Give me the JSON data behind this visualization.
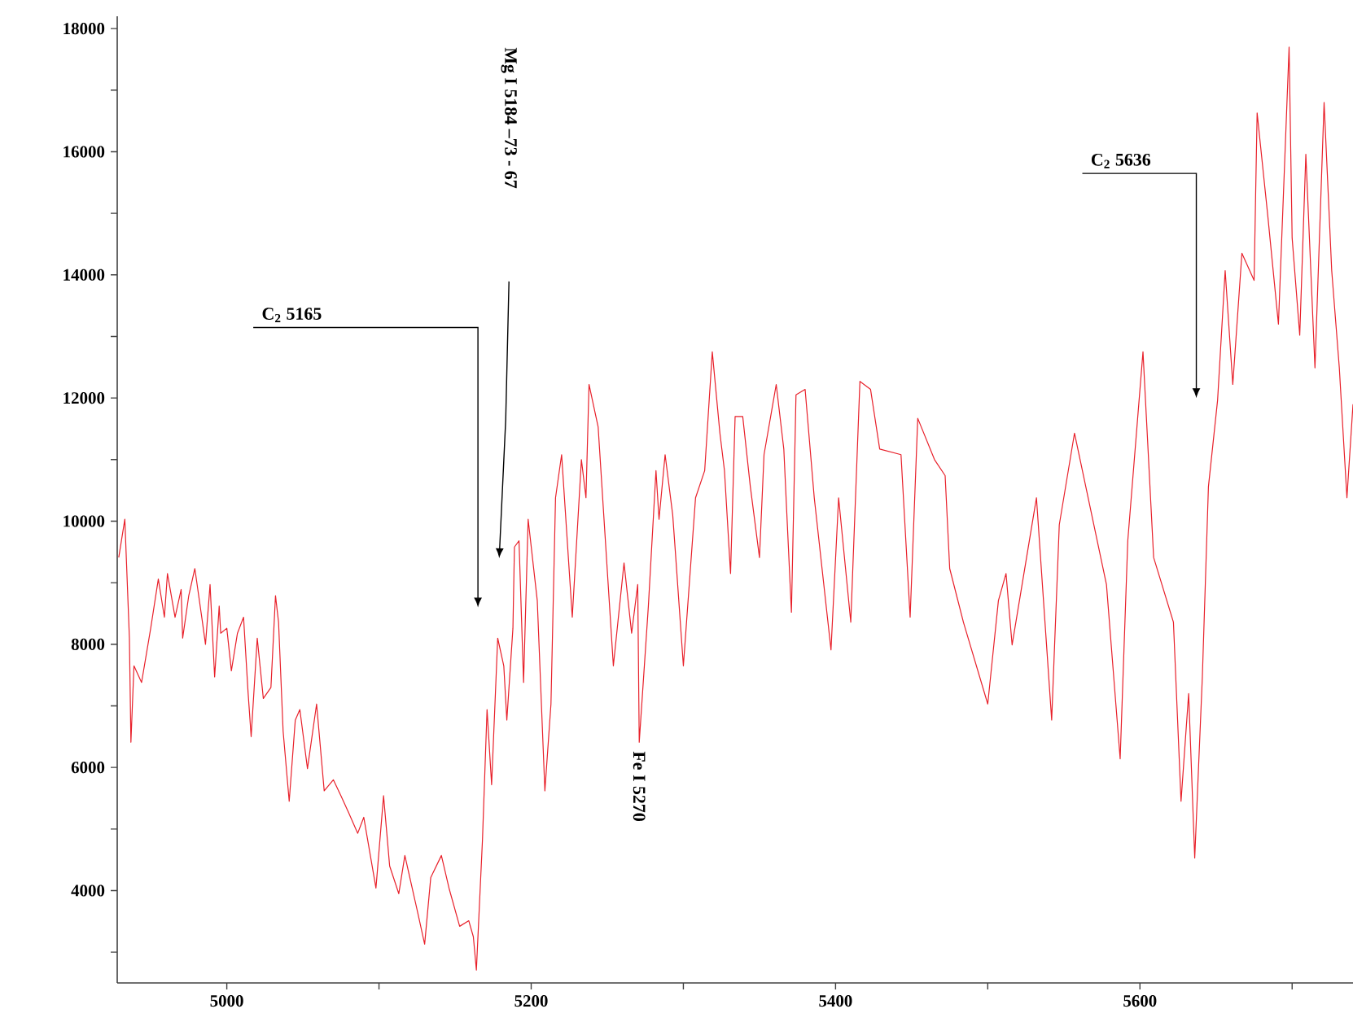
{
  "chart_data": {
    "type": "line",
    "color": "#e8202a",
    "x": [
      4929,
      4933,
      4936,
      4937,
      4939,
      4944,
      4950,
      4955,
      4959,
      4961,
      4966,
      4970,
      4971,
      4975,
      4979,
      4984,
      4986,
      4989,
      4992,
      4995,
      4996,
      5000,
      5003,
      5007,
      5011,
      5014,
      5016,
      5020,
      5024,
      5029,
      5032,
      5034,
      5037,
      5041,
      5045,
      5048,
      5053,
      5059,
      5064,
      5070,
      5075,
      5080,
      5086,
      5090,
      5098,
      5103,
      5107,
      5113,
      5117,
      5125,
      5130,
      5134,
      5141,
      5146,
      5153,
      5159,
      5162,
      5164,
      5168,
      5171,
      5174,
      5178,
      5182,
      5184,
      5188,
      5189,
      5192,
      5195,
      5198,
      5204,
      5209,
      5213,
      5216,
      5220,
      5227,
      5233,
      5236,
      5238,
      5244,
      5254,
      5261,
      5266,
      5270,
      5271,
      5277,
      5282,
      5284,
      5288,
      5293,
      5295,
      5300,
      5308,
      5314,
      5319,
      5324,
      5327,
      5331,
      5334,
      5339,
      5344,
      5350,
      5353,
      5361,
      5366,
      5371,
      5374,
      5380,
      5386,
      5397,
      5402,
      5410,
      5416,
      5423,
      5429,
      5443,
      5449,
      5454,
      5465,
      5472,
      5475,
      5484,
      5500,
      5507,
      5512,
      5516,
      5532,
      5542,
      5547,
      5557,
      5578,
      5587,
      5592,
      5602,
      5609,
      5622,
      5627,
      5632,
      5636,
      5641,
      5645,
      5651,
      5656,
      5661,
      5667,
      5675,
      5677,
      5684,
      5691,
      5698,
      5700,
      5705,
      5709,
      5715,
      5721,
      5726,
      5731,
      5736,
      5740
    ],
    "values": [
      9410,
      10030,
      8100,
      6410,
      7650,
      7380,
      8260,
      9060,
      8440,
      9150,
      8440,
      8890,
      8100,
      8790,
      9230,
      8360,
      8000,
      8970,
      7470,
      8620,
      8180,
      8260,
      7570,
      8180,
      8440,
      7210,
      6500,
      8100,
      7120,
      7300,
      8790,
      8360,
      6590,
      5450,
      6770,
      6940,
      5980,
      7030,
      5620,
      5800,
      5540,
      5270,
      4930,
      5190,
      4040,
      5540,
      4400,
      3950,
      4570,
      3690,
      3130,
      4210,
      4570,
      4040,
      3420,
      3510,
      3250,
      2710,
      4830,
      6940,
      5720,
      8100,
      7650,
      6770,
      8260,
      9580,
      9680,
      7380,
      10030,
      8710,
      5620,
      7030,
      10380,
      11080,
      8440,
      11000,
      10380,
      12220,
      11530,
      7650,
      9320,
      8180,
      8970,
      6410,
      8620,
      10820,
      10030,
      11080,
      10100,
      9410,
      7650,
      10380,
      10820,
      12750,
      11430,
      10820,
      9150,
      11700,
      11700,
      10560,
      9410,
      11080,
      12220,
      11170,
      8520,
      12050,
      12140,
      10380,
      7910,
      10380,
      8360,
      12270,
      12140,
      11170,
      11080,
      8440,
      11670,
      11000,
      10740,
      9230,
      8360,
      7030,
      8710,
      9150,
      7990,
      10380,
      6770,
      9940,
      11430,
      8970,
      6140,
      9680,
      12750,
      9410,
      8360,
      5450,
      7200,
      4530,
      7470,
      10560,
      11960,
      14070,
      12220,
      14350,
      13910,
      16630,
      14960,
      13200,
      17700,
      14600,
      13020,
      15960,
      12490,
      16800,
      14070,
      12490,
      10380,
      11900
    ],
    "xlim": [
      4928,
      5740
    ],
    "ylim": [
      2500,
      18200
    ],
    "xticks": [
      5000,
      {
        "value": 5100,
        "label": null
      },
      5200,
      {
        "value": 5300,
        "label": null
      },
      5400,
      {
        "value": 5500,
        "label": null
      },
      5600,
      {
        "value": 5700,
        "label": null
      }
    ],
    "yticks": [
      {
        "value": 3000,
        "label": null
      },
      4000,
      {
        "value": 5000,
        "label": null
      },
      6000,
      {
        "value": 7000,
        "label": null
      },
      8000,
      {
        "value": 9000,
        "label": null
      },
      10000,
      {
        "value": 11000,
        "label": null
      },
      12000,
      {
        "value": 13000,
        "label": null
      },
      14000,
      {
        "value": 15000,
        "label": null
      },
      16000,
      {
        "value": 17000,
        "label": null
      },
      18000
    ],
    "annotations": [
      "C$_{2}$ 5165",
      "Mg I 5184 –73 - 67",
      {
        "text": "Fe I 5270",
        "x": 5271,
        "y": 6400
      },
      "C$_{2}$ 5636"
    ]
  }
}
